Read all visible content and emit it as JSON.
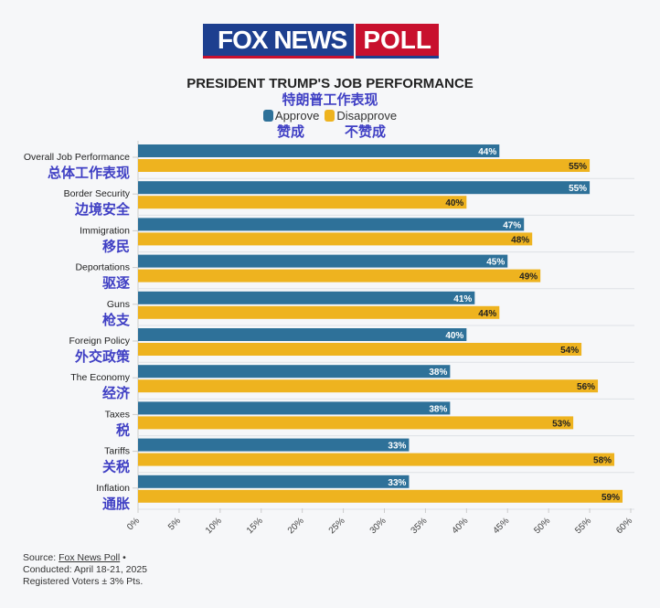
{
  "logo": {
    "text": "FOX NEWS",
    "poll": "POLL"
  },
  "header": {
    "title": "PRESIDENT TRUMP'S JOB PERFORMANCE",
    "subtitle_zh": "特朗普工作表现"
  },
  "legend": [
    {
      "label": "Approve",
      "zh": "赞成",
      "color": "#2e7199"
    },
    {
      "label": "Disapprove",
      "zh": "不赞成",
      "color": "#eeb31f"
    }
  ],
  "chart_data": {
    "type": "bar",
    "orientation": "horizontal",
    "title": "PRESIDENT TRUMP'S JOB PERFORMANCE",
    "categories": [
      "Overall Job Performance",
      "Border Security",
      "Immigration",
      "Deportations",
      "Guns",
      "Foreign Policy",
      "The Economy",
      "Taxes",
      "Tariffs",
      "Inflation"
    ],
    "categories_zh": [
      "总体工作表现",
      "边境安全",
      "移民",
      "驱逐",
      "枪支",
      "外交政策",
      "经济",
      "税",
      "关税",
      "通胀"
    ],
    "series": [
      {
        "name": "Approve",
        "values": [
          44,
          55,
          47,
          45,
          41,
          40,
          38,
          38,
          33,
          33
        ]
      },
      {
        "name": "Disapprove",
        "values": [
          55,
          40,
          48,
          49,
          44,
          54,
          56,
          53,
          58,
          59
        ]
      }
    ],
    "xlim": [
      0,
      60
    ],
    "xticks": [
      "0%",
      "5%",
      "10%",
      "15%",
      "20%",
      "25%",
      "30%",
      "35%",
      "40%",
      "45%",
      "50%",
      "55%",
      "60%"
    ],
    "grid": true,
    "legend_position": "top"
  },
  "footer": {
    "source_prefix": "Source: ",
    "source_link": "Fox News Poll",
    "source_suffix": " •",
    "conducted": "Conducted: April 18-21, 2025",
    "voters": "Registered Voters ± 3% Pts."
  }
}
